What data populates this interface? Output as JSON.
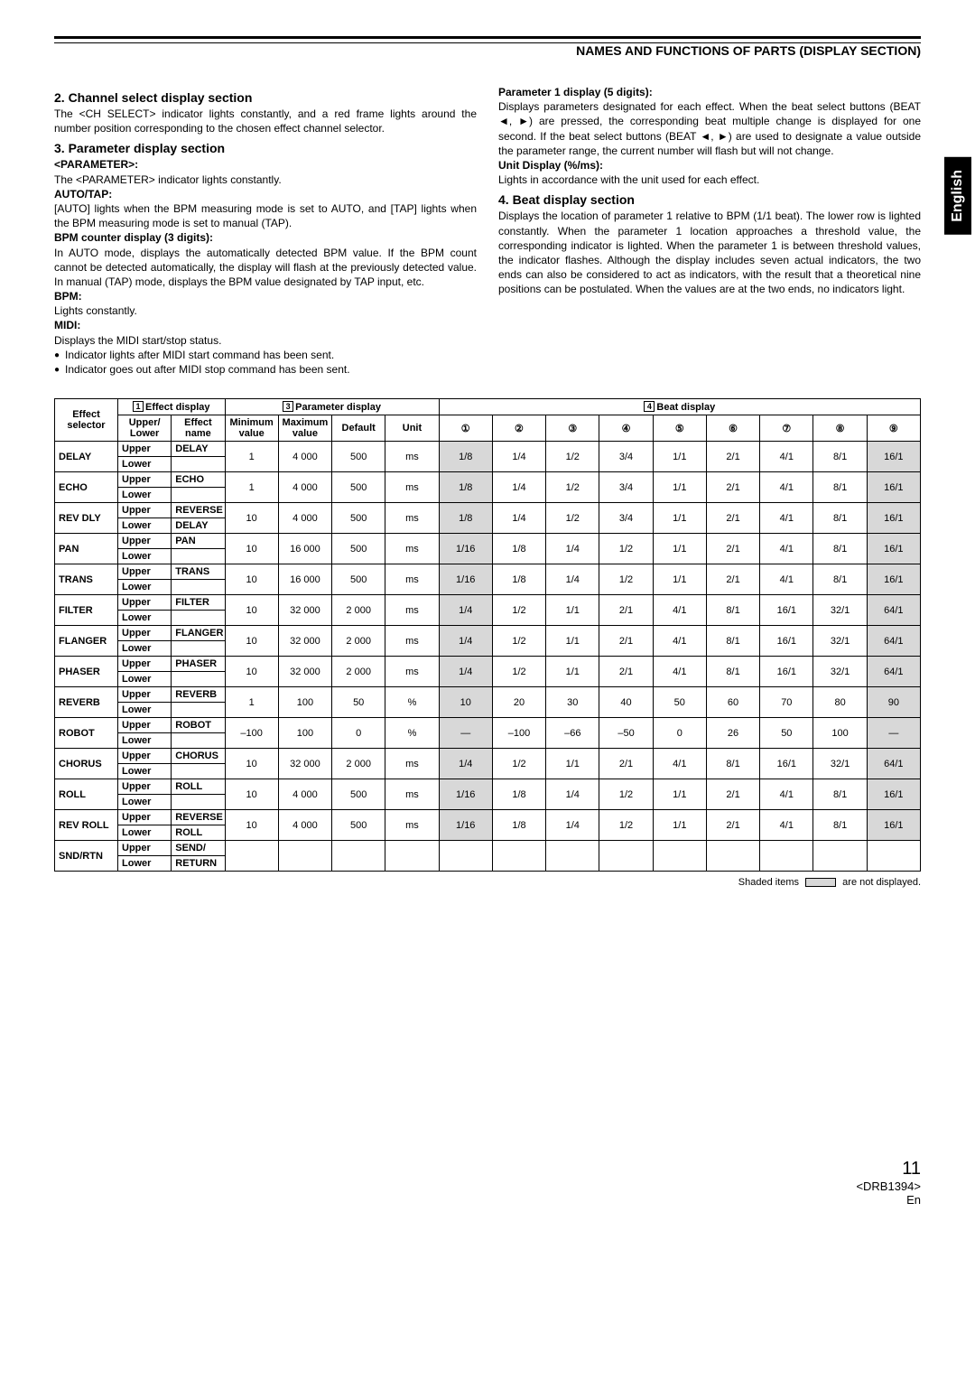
{
  "header": "NAMES AND FUNCTIONS OF PARTS (DISPLAY SECTION)",
  "lang": "English",
  "left": {
    "s2_title": "2. Channel select display section",
    "s2_body": "The <CH SELECT> indicator lights constantly, and a red frame lights around the number position corresponding to the chosen effect channel selector.",
    "s3_title": "3. Parameter display section",
    "s3_param": "<PARAMETER>:",
    "s3_param_body": "The <PARAMETER> indicator lights constantly.",
    "s3_autotap": "AUTO/TAP:",
    "s3_autotap_body": "[AUTO] lights when the BPM measuring mode is set to AUTO, and [TAP] lights when the BPM measuring mode is set to manual (TAP).",
    "s3_bpmcnt": "BPM counter display (3 digits):",
    "s3_bpmcnt_body": "In AUTO mode, displays the automatically detected BPM value. If the BPM count cannot be detected automatically, the display will flash at the previously detected value. In manual (TAP) mode, displays the BPM value designated by TAP input, etc.",
    "s3_bpm": "BPM:",
    "s3_bpm_body": "Lights constantly.",
    "s3_midi": "MIDI:",
    "s3_midi_body": "Displays the MIDI start/stop status.",
    "s3_b1": "Indicator lights after MIDI start command has been sent.",
    "s3_b2": "Indicator goes out after MIDI stop command has been sent."
  },
  "right": {
    "p1": "Parameter 1 display (5 digits):",
    "p1_body": "Displays parameters designated for each effect. When the beat select buttons (BEAT ◄, ►) are pressed, the corresponding beat multiple change is displayed for one second. If the beat select buttons (BEAT ◄, ►) are used to designate a value outside the parameter range, the current number will flash but will not change.",
    "unit": "Unit Display (%/ms):",
    "unit_body": "Lights in accordance with the unit used for each effect.",
    "s4_title": "4. Beat display section",
    "s4_body": "Displays the location of parameter 1 relative to BPM (1/1 beat). The lower row is lighted constantly. When the parameter 1 location approaches a threshold value, the corresponding indicator is lighted. When the parameter 1 is between threshold values, the indicator flashes. Although the display includes seven actual indicators, the two ends can also be considered to act as indicators, with the result that a theoretical nine positions can be postulated. When the values are at the two ends, no indicators light."
  },
  "tbl": {
    "h": {
      "eff": "Effect selector",
      "edisp": "Effect display",
      "ul": "Upper/ Lower",
      "ename": "Effect name",
      "pdisp": "Parameter display",
      "min": "Minimum value",
      "max": "Maximum value",
      "def": "Default",
      "unit": "Unit",
      "bdisp": "Beat display",
      "nums": [
        "①",
        "②",
        "③",
        "④",
        "⑤",
        "⑥",
        "⑦",
        "⑧",
        "⑨"
      ]
    },
    "rows": [
      {
        "e": "DELAY",
        "u": "DELAY",
        "l": "",
        "min": "1",
        "max": "4 000",
        "def": "500",
        "un": "ms",
        "b": [
          "1/8",
          "1/4",
          "1/2",
          "3/4",
          "1/1",
          "2/1",
          "4/1",
          "8/1",
          "16/1"
        ],
        "sh": [
          0,
          8
        ]
      },
      {
        "e": "ECHO",
        "u": "ECHO",
        "l": "",
        "min": "1",
        "max": "4 000",
        "def": "500",
        "un": "ms",
        "b": [
          "1/8",
          "1/4",
          "1/2",
          "3/4",
          "1/1",
          "2/1",
          "4/1",
          "8/1",
          "16/1"
        ],
        "sh": [
          0,
          8
        ]
      },
      {
        "e": "REV DLY",
        "u": "REVERSE",
        "l": "DELAY",
        "min": "10",
        "max": "4 000",
        "def": "500",
        "un": "ms",
        "b": [
          "1/8",
          "1/4",
          "1/2",
          "3/4",
          "1/1",
          "2/1",
          "4/1",
          "8/1",
          "16/1"
        ],
        "sh": [
          0,
          8
        ]
      },
      {
        "e": "PAN",
        "u": "PAN",
        "l": "",
        "min": "10",
        "max": "16 000",
        "def": "500",
        "un": "ms",
        "b": [
          "1/16",
          "1/8",
          "1/4",
          "1/2",
          "1/1",
          "2/1",
          "4/1",
          "8/1",
          "16/1"
        ],
        "sh": [
          0,
          8
        ]
      },
      {
        "e": "TRANS",
        "u": "TRANS",
        "l": "",
        "min": "10",
        "max": "16 000",
        "def": "500",
        "un": "ms",
        "b": [
          "1/16",
          "1/8",
          "1/4",
          "1/2",
          "1/1",
          "2/1",
          "4/1",
          "8/1",
          "16/1"
        ],
        "sh": [
          0,
          8
        ]
      },
      {
        "e": "FILTER",
        "u": "FILTER",
        "l": "",
        "min": "10",
        "max": "32 000",
        "def": "2 000",
        "un": "ms",
        "b": [
          "1/4",
          "1/2",
          "1/1",
          "2/1",
          "4/1",
          "8/1",
          "16/1",
          "32/1",
          "64/1"
        ],
        "sh": [
          0,
          8
        ]
      },
      {
        "e": "FLANGER",
        "u": "FLANGER",
        "l": "",
        "min": "10",
        "max": "32 000",
        "def": "2 000",
        "un": "ms",
        "b": [
          "1/4",
          "1/2",
          "1/1",
          "2/1",
          "4/1",
          "8/1",
          "16/1",
          "32/1",
          "64/1"
        ],
        "sh": [
          0,
          8
        ]
      },
      {
        "e": "PHASER",
        "u": "PHASER",
        "l": "",
        "min": "10",
        "max": "32 000",
        "def": "2 000",
        "un": "ms",
        "b": [
          "1/4",
          "1/2",
          "1/1",
          "2/1",
          "4/1",
          "8/1",
          "16/1",
          "32/1",
          "64/1"
        ],
        "sh": [
          0,
          8
        ]
      },
      {
        "e": "REVERB",
        "u": "REVERB",
        "l": "",
        "min": "1",
        "max": "100",
        "def": "50",
        "un": "%",
        "b": [
          "10",
          "20",
          "30",
          "40",
          "50",
          "60",
          "70",
          "80",
          "90"
        ],
        "sh": [
          0,
          8
        ]
      },
      {
        "e": "ROBOT",
        "u": "ROBOT",
        "l": "",
        "min": "–100",
        "max": "100",
        "def": "0",
        "un": "%",
        "b": [
          "—",
          "–100",
          "–66",
          "–50",
          "0",
          "26",
          "50",
          "100",
          "—"
        ],
        "sh": [
          0,
          8
        ]
      },
      {
        "e": "CHORUS",
        "u": "CHORUS",
        "l": "",
        "min": "10",
        "max": "32 000",
        "def": "2 000",
        "un": "ms",
        "b": [
          "1/4",
          "1/2",
          "1/1",
          "2/1",
          "4/1",
          "8/1",
          "16/1",
          "32/1",
          "64/1"
        ],
        "sh": [
          0,
          8
        ]
      },
      {
        "e": "ROLL",
        "u": "ROLL",
        "l": "",
        "min": "10",
        "max": "4 000",
        "def": "500",
        "un": "ms",
        "b": [
          "1/16",
          "1/8",
          "1/4",
          "1/2",
          "1/1",
          "2/1",
          "4/1",
          "8/1",
          "16/1"
        ],
        "sh": [
          0,
          8
        ]
      },
      {
        "e": "REV ROLL",
        "u": "REVERSE",
        "l": "ROLL",
        "min": "10",
        "max": "4 000",
        "def": "500",
        "un": "ms",
        "b": [
          "1/16",
          "1/8",
          "1/4",
          "1/2",
          "1/1",
          "2/1",
          "4/1",
          "8/1",
          "16/1"
        ],
        "sh": [
          0,
          8
        ]
      },
      {
        "e": "SND/RTN",
        "u": "SEND/",
        "l": "RETURN",
        "min": "",
        "max": "",
        "def": "",
        "un": "",
        "b": [
          "",
          "",
          "",
          "",
          "",
          "",
          "",
          "",
          ""
        ],
        "sh": []
      }
    ]
  },
  "caption": "Shaded items                are not displayed.",
  "caption_pre": "Shaded items ",
  "caption_post": " are not displayed.",
  "footer": {
    "page": "11",
    "doc": "<DRB1394>",
    "lang": "En"
  }
}
